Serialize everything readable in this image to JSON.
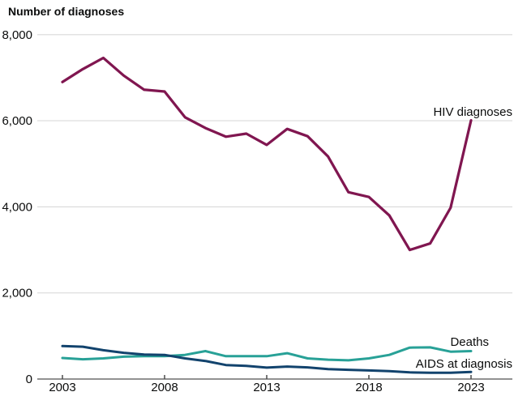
{
  "chart_data": {
    "type": "line",
    "title": "Number of diagnoses",
    "x": [
      2003,
      2004,
      2005,
      2006,
      2007,
      2008,
      2009,
      2010,
      2011,
      2012,
      2013,
      2014,
      2015,
      2016,
      2017,
      2018,
      2019,
      2020,
      2021,
      2022,
      2023
    ],
    "series": [
      {
        "name": "HIV diagnoses",
        "color": "#801650",
        "values": [
          6900,
          7200,
          7460,
          7050,
          6720,
          6680,
          6080,
          5830,
          5630,
          5700,
          5440,
          5810,
          5640,
          5170,
          4340,
          4230,
          3800,
          3000,
          3150,
          3980,
          6010
        ]
      },
      {
        "name": "Deaths",
        "color": "#28A197",
        "values": [
          490,
          460,
          480,
          520,
          530,
          530,
          560,
          650,
          530,
          530,
          530,
          600,
          480,
          450,
          435,
          480,
          560,
          730,
          735,
          635,
          650
        ]
      },
      {
        "name": "AIDS at diagnosis",
        "color": "#12436D",
        "values": [
          765,
          750,
          670,
          610,
          570,
          560,
          480,
          420,
          325,
          305,
          265,
          290,
          270,
          230,
          215,
          200,
          185,
          155,
          145,
          145,
          165
        ]
      }
    ],
    "ylim": [
      0,
      8000
    ],
    "yticks": {
      "values": [
        0,
        2000,
        4000,
        6000,
        8000
      ],
      "labels": [
        "0",
        "2,000",
        "4,000",
        "6,000",
        "8,000"
      ]
    },
    "xticks": {
      "values": [
        2003,
        2008,
        2013,
        2018,
        2023
      ],
      "labels": [
        "2003",
        "2008",
        "2013",
        "2018",
        "2023"
      ]
    },
    "grid": "horizontal",
    "legend": "inline-end-labels",
    "colors": {
      "gridline": "#d9d9d9",
      "axis": "#6f6f6f",
      "tick": "#4a4a4a",
      "text": "#0b0c0c"
    }
  }
}
